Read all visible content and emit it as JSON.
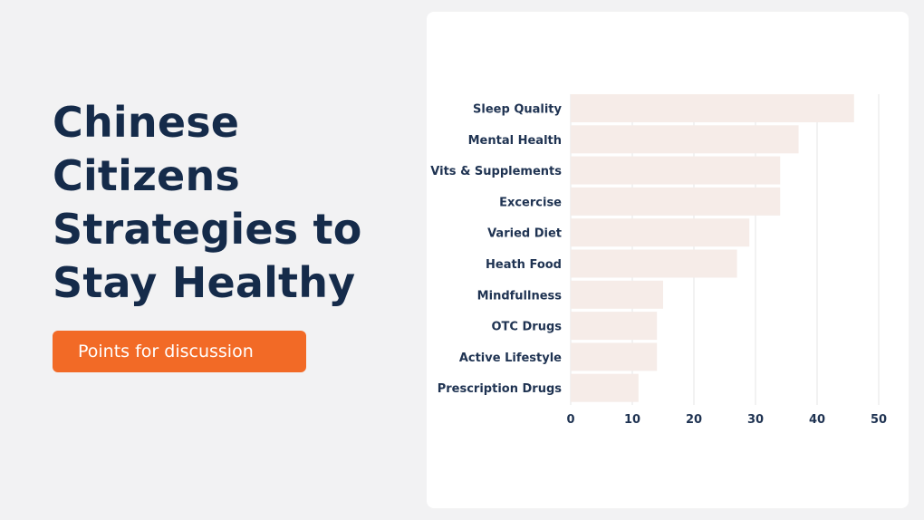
{
  "slide": {
    "title": "Chinese Citizens Strategies to Stay Healthy",
    "button_label": "Points for discussion"
  },
  "colors": {
    "background": "#f2f2f3",
    "title": "#152b4a",
    "button": "#f26a26",
    "bar": "#f6ece8",
    "grid": "#e6e6e6"
  },
  "chart_data": {
    "type": "bar",
    "orientation": "horizontal",
    "categories": [
      "Sleep Quality",
      "Mental Health",
      "Vits & Supplements",
      "Excercise",
      "Varied Diet",
      "Heath Food",
      "Mindfullness",
      "OTC Drugs",
      "Active Lifestyle",
      "Prescription Drugs"
    ],
    "values": [
      46,
      37,
      34,
      34,
      29,
      27,
      15,
      14,
      14,
      11
    ],
    "xlim": [
      0,
      50
    ],
    "ticks": [
      "0",
      "10",
      "20",
      "30",
      "40",
      "50"
    ],
    "grid": "vertical",
    "legend": "none"
  }
}
